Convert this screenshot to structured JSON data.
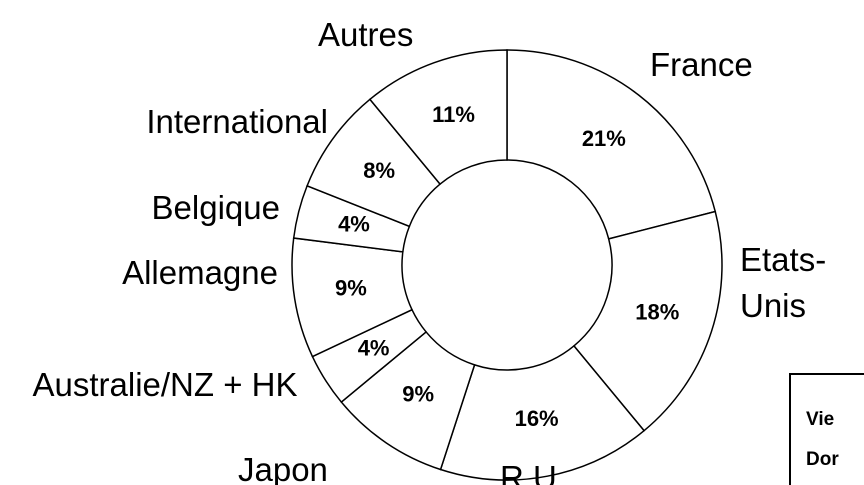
{
  "chart_data": {
    "type": "donut",
    "categories": [
      "France",
      "Etats-Unis",
      "R.U",
      "Japon",
      "Australie/NZ + HK",
      "Allemagne",
      "Belgique",
      "International",
      "Autres"
    ],
    "values": [
      21,
      18,
      16,
      9,
      4,
      9,
      4,
      8,
      11
    ],
    "value_labels": [
      "21%",
      "18%",
      "16%",
      "9%",
      "4%",
      "9%",
      "4%",
      "8%",
      "11%"
    ],
    "color": "#ffffff",
    "annotations": [
      "Vie",
      "Dor"
    ]
  }
}
